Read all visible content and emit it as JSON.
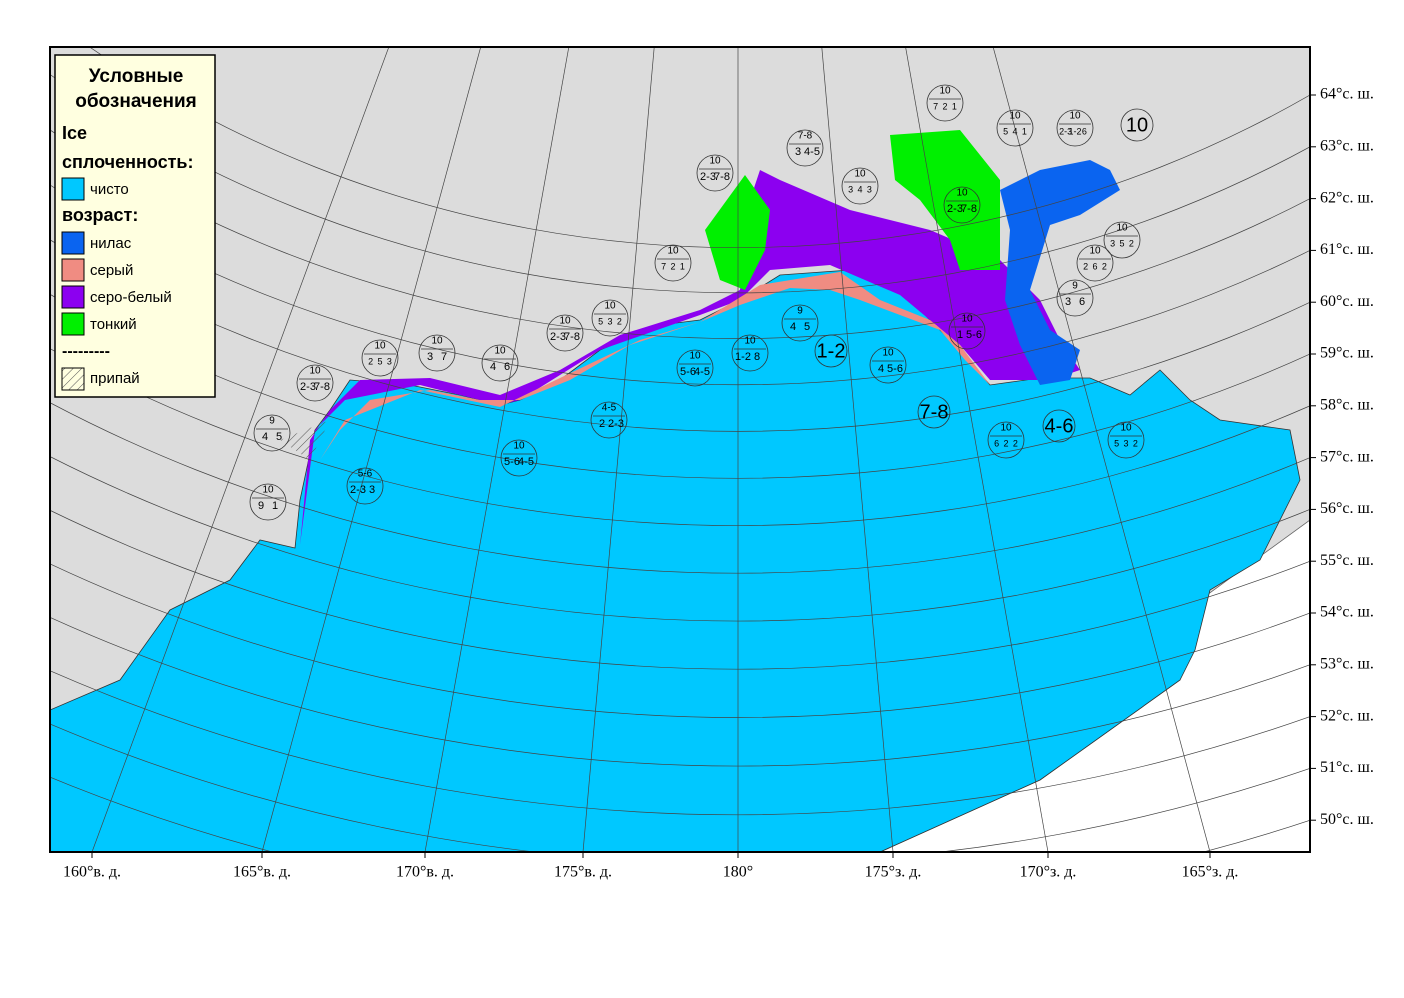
{
  "legend": {
    "title": "Условные обозначения",
    "subtitle": "Ice",
    "concentration_heading": "сплоченность:",
    "concentration_items": [
      {
        "label": "чисто",
        "color": "#00c8ff"
      }
    ],
    "age_heading": "возраст:",
    "age_items": [
      {
        "label": "нилас",
        "color": "#0a64f0"
      },
      {
        "label": "серый",
        "color": "#f08c82"
      },
      {
        "label": "серо-белый",
        "color": "#8c00f0"
      },
      {
        "label": "тонкий",
        "color": "#00f000"
      }
    ],
    "separator": "---------",
    "fast_ice": "припай"
  },
  "lat_labels": [
    "64°с. ш.",
    "63°с. ш.",
    "62°с. ш.",
    "61°с. ш.",
    "60°с. ш.",
    "59°с. ш.",
    "58°с. ш.",
    "57°с. ш.",
    "56°с. ш.",
    "55°с. ш.",
    "54°с. ш.",
    "53°с. ш.",
    "52°с. ш.",
    "51°с. ш.",
    "50°с. ш."
  ],
  "lon_labels": [
    "160°в. д.",
    "165°в. д.",
    "170°в. д.",
    "175°в. д.",
    "180°",
    "175°з. д.",
    "170°з. д.",
    "165°з. д."
  ],
  "egg_codes": [
    {
      "lines": [
        "10",
        "7",
        "2",
        "1"
      ]
    },
    {
      "lines": [
        "7-8",
        "3",
        "4-5"
      ]
    },
    {
      "lines": [
        "10",
        "5",
        "4",
        "1"
      ]
    },
    {
      "lines": [
        "10",
        "2-3",
        "1-2",
        "6"
      ]
    },
    {
      "lines": [
        "10"
      ]
    },
    {
      "lines": [
        "10",
        "2-3",
        "7-8"
      ]
    },
    {
      "lines": [
        "10",
        "3",
        "4",
        "3"
      ]
    },
    {
      "lines": [
        "10",
        "2-3",
        "7-8"
      ]
    },
    {
      "lines": [
        "10",
        "3",
        "5",
        "2"
      ]
    },
    {
      "lines": [
        "10",
        "7",
        "2",
        "1"
      ]
    },
    {
      "lines": [
        "10",
        "2",
        "6",
        "2"
      ]
    },
    {
      "lines": [
        "10",
        "5",
        "3",
        "2"
      ]
    },
    {
      "lines": [
        "9",
        "3",
        "6"
      ]
    },
    {
      "lines": [
        "9",
        "4",
        "5"
      ]
    },
    {
      "lines": [
        "10",
        "2-3",
        "7-8"
      ]
    },
    {
      "lines": [
        "10",
        "3",
        "7"
      ]
    },
    {
      "lines": [
        "10",
        "2",
        "5",
        "3"
      ]
    },
    {
      "lines": [
        "10",
        "4",
        "6"
      ]
    },
    {
      "lines": [
        "10",
        "5-6",
        "4-5"
      ]
    },
    {
      "lines": [
        "1-2"
      ]
    },
    {
      "lines": [
        "10",
        "4",
        "5-6"
      ]
    },
    {
      "lines": [
        "10",
        "1",
        "5-6"
      ]
    },
    {
      "lines": [
        "10",
        "2-3",
        "7-8"
      ]
    },
    {
      "lines": [
        "9",
        "4",
        "5"
      ]
    },
    {
      "lines": [
        "4-5",
        "2",
        "2-3"
      ]
    },
    {
      "lines": [
        "7-8"
      ]
    },
    {
      "lines": [
        "10",
        "6",
        "2",
        "2"
      ]
    },
    {
      "lines": [
        "4-6"
      ]
    },
    {
      "lines": [
        "10",
        "5",
        "3",
        "2"
      ]
    },
    {
      "lines": [
        "10",
        "5-6",
        "4-5"
      ]
    },
    {
      "lines": [
        "5-6",
        "2-3",
        "3"
      ]
    },
    {
      "lines": [
        "10",
        "9",
        "1"
      ]
    },
    {
      "lines": [
        "10",
        "1-2",
        "8"
      ]
    }
  ]
}
